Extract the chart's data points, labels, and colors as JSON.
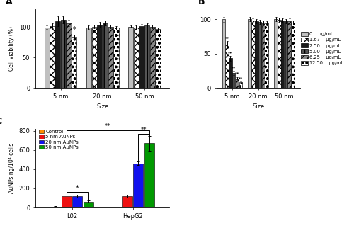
{
  "panel_A": {
    "title": "A",
    "sizes": [
      "5 nm",
      "20 nm",
      "50 nm"
    ],
    "concentrations": [
      "0",
      "1.67",
      "2.50",
      "5.00",
      "6.25",
      "12.50"
    ],
    "values": [
      [
        100,
        102,
        110,
        112,
        107,
        84
      ],
      [
        100,
        101,
        104,
        107,
        101,
        99
      ],
      [
        101,
        100,
        102,
        103,
        101,
        97
      ]
    ],
    "errors": [
      [
        3,
        4,
        8,
        6,
        5,
        4
      ],
      [
        3,
        3,
        5,
        4,
        3,
        3
      ],
      [
        2,
        3,
        3,
        4,
        3,
        3
      ]
    ],
    "ylabel": "Cell viability (%)",
    "xlabel": "Size",
    "ylim": [
      0,
      130
    ],
    "yticks": [
      0,
      50,
      100
    ]
  },
  "panel_B": {
    "title": "B",
    "sizes": [
      "5 nm",
      "20 nm",
      "50 nm"
    ],
    "concentrations": [
      "0",
      "1.67",
      "2.50",
      "5.00",
      "6.25",
      "12.50"
    ],
    "values": [
      [
        100,
        63,
        43,
        22,
        14,
        8
      ],
      [
        100,
        98,
        97,
        96,
        95,
        94
      ],
      [
        100,
        99,
        98,
        97,
        97,
        95
      ]
    ],
    "errors": [
      [
        4,
        5,
        4,
        3,
        2,
        1
      ],
      [
        3,
        3,
        3,
        3,
        3,
        3
      ],
      [
        3,
        3,
        3,
        3,
        4,
        3
      ]
    ],
    "ylabel": "Cell viability (%)",
    "xlabel": "Size",
    "ylim": [
      0,
      115
    ],
    "yticks": [
      0,
      50,
      100
    ]
  },
  "legend_labels": [
    "0",
    "1.67",
    "2.50",
    "5.00",
    "6.25",
    "12.50"
  ],
  "legend_unit": "μg/mL",
  "bar_styles": [
    {
      "facecolor": "#c0c0c0",
      "hatch": "",
      "edgecolor": "black"
    },
    {
      "facecolor": "white",
      "hatch": "xxx",
      "edgecolor": "black"
    },
    {
      "facecolor": "#1a1a1a",
      "hatch": "",
      "edgecolor": "black"
    },
    {
      "facecolor": "#555555",
      "hatch": "|||",
      "edgecolor": "black"
    },
    {
      "facecolor": "#888888",
      "hatch": "////",
      "edgecolor": "black"
    },
    {
      "facecolor": "white",
      "hatch": "ooo",
      "edgecolor": "black"
    }
  ],
  "panel_C": {
    "title": "C",
    "groups": [
      "L02",
      "HepG2"
    ],
    "categories": [
      "Control",
      "5 nm AuNPs",
      "20 nm AuNPs",
      "50 nm AuNPs"
    ],
    "colors": [
      "#FF8C00",
      "#EE1111",
      "#1111EE",
      "#009900"
    ],
    "values_L02": [
      10,
      118,
      118,
      62
    ],
    "values_HepG2": [
      7,
      118,
      458,
      668
    ],
    "errors_L02": [
      2,
      14,
      12,
      9
    ],
    "errors_HepG2": [
      2,
      14,
      18,
      75
    ],
    "ylabel": "AuNPs ng/10⁴ cells",
    "ylim": [
      0,
      820
    ],
    "yticks": [
      0,
      200,
      400,
      600,
      800
    ]
  }
}
